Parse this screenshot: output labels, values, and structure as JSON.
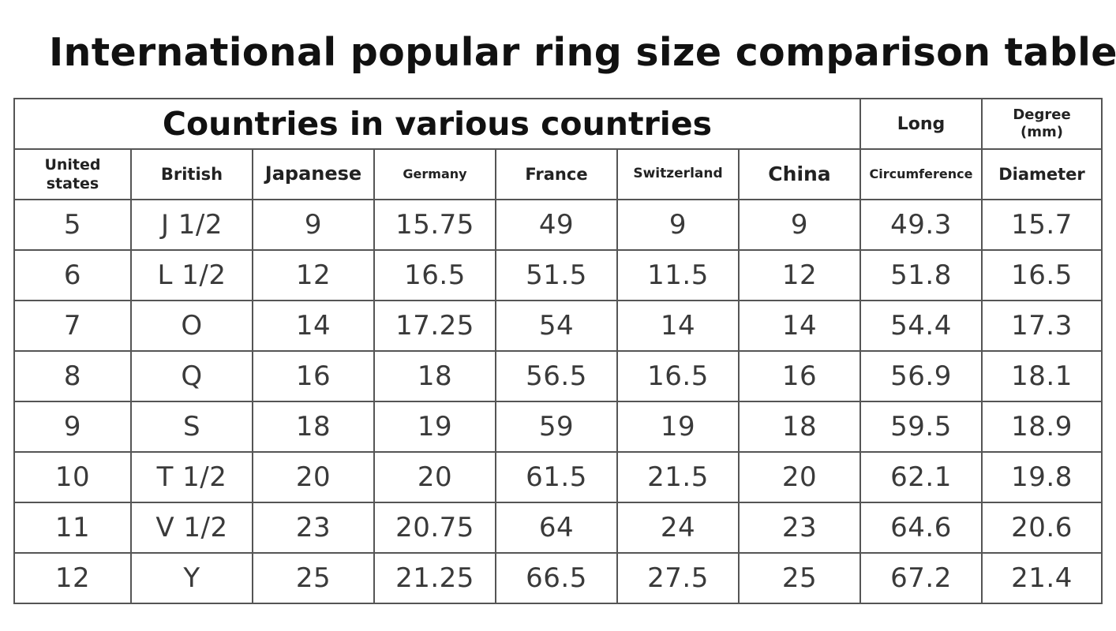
{
  "title": "International popular ring size comparison table",
  "table": {
    "group_header": "Countries in various countries",
    "long_header": "Long",
    "degree_header": "Degree\n(mm)",
    "columns": [
      "United\nstates",
      "British",
      "Japanese",
      "Germany",
      "France",
      "Switzerland",
      "China",
      "Circumference",
      "Diameter"
    ],
    "rows": [
      [
        "5",
        "J 1/2",
        "9",
        "15.75",
        "49",
        "9",
        "9",
        "49.3",
        "15.7"
      ],
      [
        "6",
        "L 1/2",
        "12",
        "16.5",
        "51.5",
        "11.5",
        "12",
        "51.8",
        "16.5"
      ],
      [
        "7",
        "O",
        "14",
        "17.25",
        "54",
        "14",
        "14",
        "54.4",
        "17.3"
      ],
      [
        "8",
        "Q",
        "16",
        "18",
        "56.5",
        "16.5",
        "16",
        "56.9",
        "18.1"
      ],
      [
        "9",
        "S",
        "18",
        "19",
        "59",
        "19",
        "18",
        "59.5",
        "18.9"
      ],
      [
        "10",
        "T 1/2",
        "20",
        "20",
        "61.5",
        "21.5",
        "20",
        "62.1",
        "19.8"
      ],
      [
        "11",
        "V 1/2",
        "23",
        "20.75",
        "64",
        "24",
        "23",
        "64.6",
        "20.6"
      ],
      [
        "12",
        "Y",
        "25",
        "21.25",
        "66.5",
        "27.5",
        "25",
        "67.2",
        "21.4"
      ]
    ]
  }
}
